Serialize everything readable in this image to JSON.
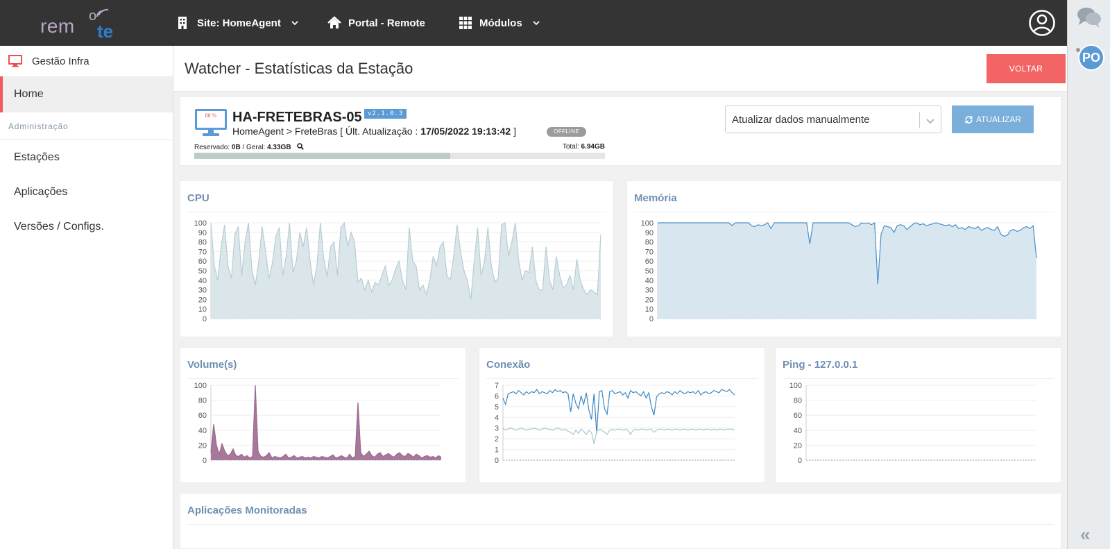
{
  "topbar": {
    "logo": {
      "part1": "rem",
      "part2": "o",
      "part3": "te"
    },
    "nav_site": "Site: HomeAgent",
    "nav_portal": "Portal - Remote",
    "nav_modules": "Módulos"
  },
  "rail": {
    "avatar_initials": "PO"
  },
  "sidebar": {
    "header": "Gestão Infra",
    "home": "Home",
    "section": "Administração",
    "items": [
      "Estações",
      "Aplicações",
      "Versões / Configs."
    ]
  },
  "page": {
    "title": "Watcher - Estatísticas da Estação",
    "back_label": "VOLTAR"
  },
  "station": {
    "monitor_label": "88 %",
    "name": "HA-FRETEBRAS-05",
    "version": "v2.1.0.3",
    "path_prefix": "HomeAgent > FreteBras [ Últ. Atualização : ",
    "last_update": "17/05/2022 19:13:42",
    "path_suffix": " ]",
    "status": "OFFLINE",
    "reserved_label": "Reservado: ",
    "reserved_value": "0B",
    "general_label": " /  Geral: ",
    "general_value": "4.33GB",
    "total_label": "Total: ",
    "total_value": "6.94GB",
    "usage_fraction": 0.624,
    "update_select": "Atualizar dados manualmente",
    "update_button": "ATUALIZAR"
  },
  "colors": {
    "accent": "#6f8fb2",
    "danger": "#f36565",
    "primary": "#7aaedb"
  },
  "chart_data": [
    {
      "type": "area",
      "title": "CPU",
      "ylim": [
        0,
        100
      ],
      "yticks": [
        0,
        10,
        20,
        30,
        40,
        50,
        60,
        70,
        80,
        90,
        100
      ],
      "color": "#b7cdd3",
      "fill": "#dbe6ea",
      "values": [
        100,
        55,
        40,
        75,
        98,
        55,
        42,
        88,
        96,
        45,
        80,
        100,
        50,
        35,
        60,
        96,
        70,
        42,
        58,
        86,
        95,
        45,
        65,
        100,
        48,
        60,
        90,
        75,
        95,
        60,
        35,
        55,
        100,
        62,
        44,
        75,
        80,
        45,
        95,
        100,
        75,
        90,
        80,
        38,
        42,
        30,
        40,
        28,
        38,
        35,
        45,
        55,
        35,
        40,
        52,
        60,
        40,
        30,
        95,
        60,
        55,
        30,
        35,
        25,
        40,
        65,
        55,
        75,
        80,
        45,
        40,
        65,
        98,
        70,
        50,
        40,
        20,
        60,
        95,
        45,
        60,
        95,
        55,
        38,
        42,
        98,
        100,
        65,
        80,
        100,
        60,
        40,
        50,
        48,
        75,
        40,
        30,
        30,
        75,
        40,
        30,
        65,
        45,
        32,
        35,
        45,
        30,
        62,
        40,
        30,
        25,
        30,
        28,
        25,
        88
      ]
    },
    {
      "type": "area",
      "title": "Memória",
      "ylim": [
        0,
        100
      ],
      "yticks": [
        0,
        10,
        20,
        30,
        40,
        50,
        60,
        70,
        80,
        90,
        100
      ],
      "color": "#4a8fc9",
      "fill": "#d8e6ef",
      "values": [
        100,
        100,
        100,
        100,
        100,
        100,
        100,
        100,
        100,
        100,
        100,
        100,
        100,
        100,
        100,
        100,
        100,
        100,
        100,
        100,
        100,
        100,
        100,
        97,
        100,
        100,
        100,
        100,
        100,
        97,
        96,
        98,
        97,
        98,
        100,
        94,
        100,
        100,
        100,
        100,
        100,
        100,
        100,
        100,
        100,
        100,
        100,
        78,
        100,
        100,
        100,
        100,
        100,
        100,
        100,
        100,
        100,
        100,
        100,
        100,
        98,
        96,
        97,
        100,
        99,
        100,
        98,
        100,
        36,
        88,
        97,
        96,
        95,
        90,
        97,
        98,
        97,
        93,
        96,
        99,
        100,
        98,
        99,
        97,
        98,
        99,
        100,
        99,
        98,
        97,
        98,
        96,
        98,
        94,
        95,
        93,
        96,
        95,
        94,
        96,
        92,
        94,
        95,
        93,
        92,
        96,
        88,
        86,
        87,
        92,
        93,
        91,
        92,
        95,
        96,
        94,
        97,
        63
      ]
    },
    {
      "type": "area",
      "title": "Volume(s)",
      "ylim": [
        0,
        100
      ],
      "yticks": [
        0,
        20,
        40,
        60,
        80,
        100
      ],
      "color": "#9a6a8e",
      "fill": "#a8789b",
      "values": [
        10,
        48,
        20,
        8,
        22,
        12,
        6,
        8,
        15,
        6,
        5,
        8,
        4,
        6,
        3,
        5,
        100,
        12,
        5,
        4,
        6,
        10,
        3,
        5,
        4,
        3,
        5,
        8,
        3,
        4,
        6,
        3,
        4,
        5,
        3,
        4,
        3,
        5,
        4,
        3,
        5,
        4,
        3,
        5,
        7,
        3,
        4,
        6,
        4,
        3,
        8,
        3,
        5,
        77,
        10,
        5,
        8,
        12,
        6,
        4,
        8,
        10,
        5,
        7,
        9,
        6,
        4,
        8,
        10,
        6,
        5,
        9,
        7,
        4,
        8,
        6,
        3,
        5,
        6,
        4,
        5,
        3,
        6,
        4
      ]
    },
    {
      "type": "line",
      "title": "Conexão",
      "ylim": [
        0,
        7
      ],
      "yticks": [
        0,
        1,
        2,
        3,
        4,
        5,
        6,
        7
      ],
      "series": [
        {
          "color": "#3d87c4",
          "values": [
            5.8,
            5.2,
            6.2,
            6.3,
            6.4,
            6.2,
            6.5,
            6.3,
            6.1,
            6.4,
            6.2,
            6.4,
            6.3,
            6.6,
            6.2,
            6.4,
            6.3,
            6.2,
            6.5,
            6.3,
            6.6,
            6.4,
            6.5,
            6.3,
            6.4,
            6.2,
            4.5,
            6.2,
            5.3,
            4.8,
            6.0,
            5.2,
            6.3,
            4.7,
            3.8,
            6.2,
            2.5,
            6.4,
            6.5,
            4.8,
            4.3,
            6.4,
            6.5,
            6.2,
            6.3,
            6.4,
            6.1,
            6.3,
            5.8,
            6.5,
            6.3,
            6.4,
            6.2,
            6.0,
            6.4,
            5.8,
            6.3,
            5.0,
            4.2,
            5.9,
            6.2,
            6.3,
            6.2,
            6.4,
            6.3,
            6.1,
            6.4,
            6.2,
            6.5,
            6.3,
            6.2,
            6.4,
            6.3,
            6.4,
            6.2,
            6.5,
            6.1,
            6.3,
            6.4,
            6.2,
            6.3,
            6.5,
            6.4,
            6.3,
            6.6,
            6.5,
            6.4,
            6.6,
            6.3,
            6.1
          ]
        },
        {
          "color": "#a8c6cf",
          "values": [
            3.0,
            2.8,
            2.9,
            3.0,
            2.9,
            2.8,
            2.9,
            3.0,
            2.9,
            2.8,
            2.9,
            2.9,
            3.0,
            2.9,
            2.8,
            2.9,
            3.0,
            2.9,
            2.9,
            2.8,
            2.9,
            3.0,
            2.9,
            2.8,
            2.9,
            2.7,
            2.6,
            2.4,
            2.8,
            2.5,
            2.9,
            2.7,
            2.4,
            2.8,
            2.6,
            1.5,
            2.7,
            2.9,
            2.8,
            2.6,
            2.4,
            2.8,
            2.9,
            2.8,
            2.9,
            2.9,
            2.8,
            2.9,
            2.8,
            2.4,
            2.8,
            2.9,
            2.8,
            2.9,
            2.9,
            2.8,
            2.9,
            2.9,
            2.6,
            2.8,
            2.9,
            2.9,
            2.8,
            2.9,
            2.9,
            2.8,
            2.9,
            2.9,
            2.8,
            2.9,
            2.9,
            2.8,
            2.9,
            2.9,
            2.8,
            2.9,
            2.9,
            2.8,
            2.9,
            2.9,
            2.8,
            2.9,
            2.8,
            2.9,
            2.9,
            2.8,
            2.9,
            2.9,
            2.9,
            2.8
          ]
        }
      ]
    },
    {
      "type": "line",
      "title": "Ping - 127.0.0.1",
      "ylim": [
        0,
        100
      ],
      "yticks": [
        0,
        20,
        40,
        60,
        80,
        100
      ],
      "values": []
    }
  ],
  "apps": {
    "title": "Aplicações Monitoradas"
  }
}
